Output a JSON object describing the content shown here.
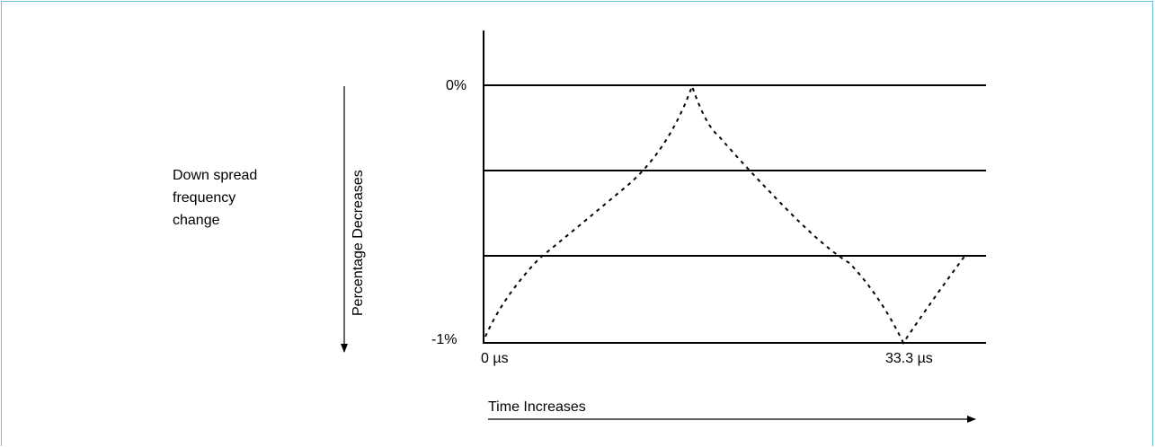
{
  "side_caption": {
    "lines": [
      "Down spread",
      "frequency",
      "change"
    ]
  },
  "y_arrow_label": "Percentage Decreases",
  "x_arrow_label": "Time Increases",
  "y_labels": {
    "top": "0%",
    "bottom": "-1%"
  },
  "x_labels": {
    "start": "0 µs",
    "end": "33.3 µs"
  },
  "colors": {
    "frame_border": "#6bbfe0",
    "lines": "#000000"
  }
}
